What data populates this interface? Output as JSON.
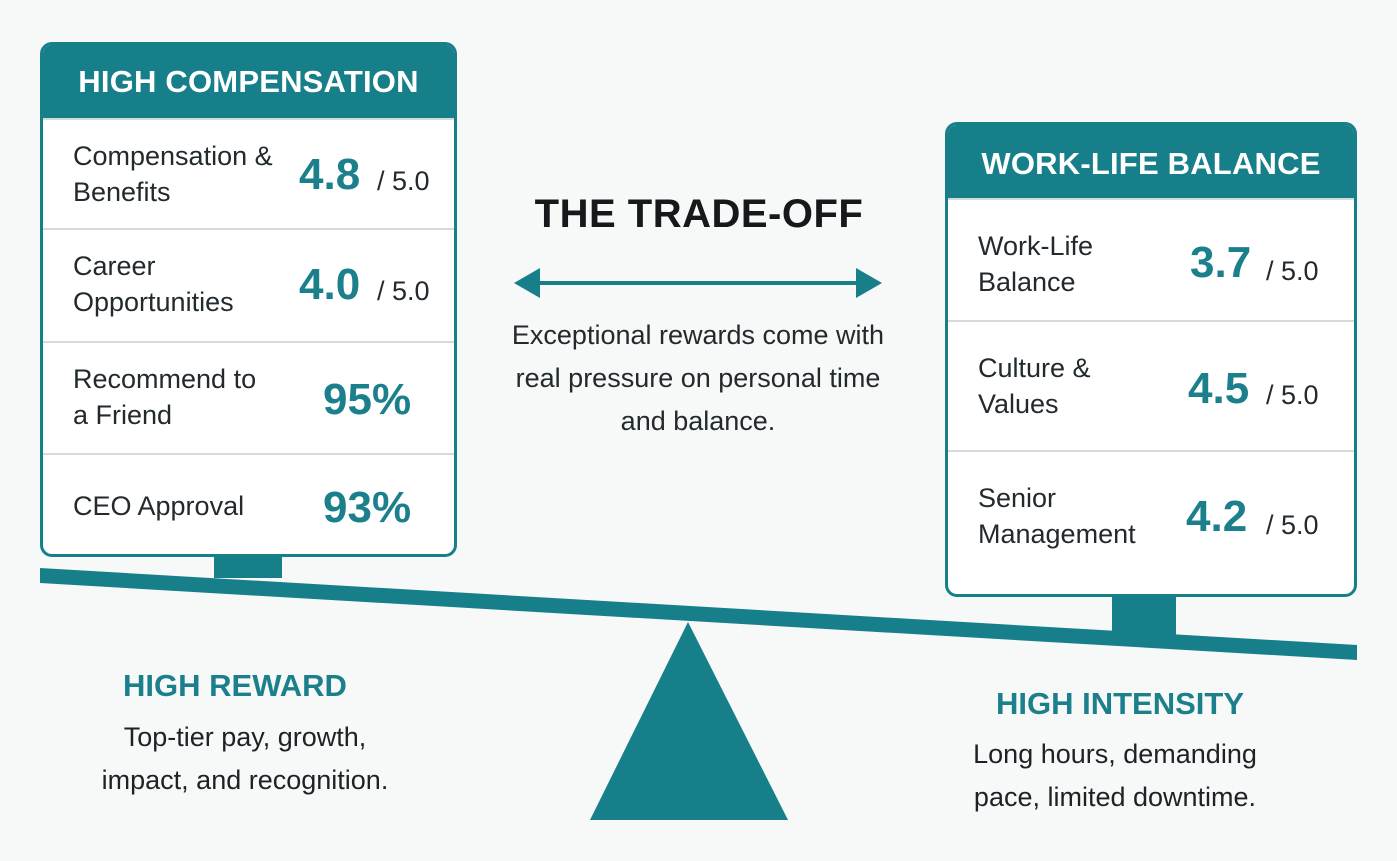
{
  "center": {
    "title": "THE TRADE-OFF",
    "description": "Exceptional rewards come with real pressure on personal time and balance."
  },
  "left_card": {
    "header": "HIGH COMPENSATION",
    "rows": [
      {
        "label": "Compensation & Benefits",
        "value": "4.8",
        "suffix": "/ 5.0"
      },
      {
        "label": "Career Opportunities",
        "value": "4.0",
        "suffix": "/ 5.0"
      },
      {
        "label": "Recommend to a Friend",
        "value": "95%",
        "suffix": ""
      },
      {
        "label": "CEO Approval",
        "value": "93%",
        "suffix": ""
      }
    ]
  },
  "right_card": {
    "header": "WORK-LIFE BALANCE",
    "rows": [
      {
        "label": "Work-Life Balance",
        "value": "3.7",
        "suffix": "/ 5.0"
      },
      {
        "label": "Culture & Values",
        "value": "4.5",
        "suffix": "/ 5.0"
      },
      {
        "label": "Senior Management",
        "value": "4.2",
        "suffix": "/ 5.0"
      }
    ]
  },
  "left_caption": {
    "title": "HIGH REWARD",
    "text": "Top-tier pay, growth, impact, and recognition."
  },
  "right_caption": {
    "title": "HIGH INTENSITY",
    "text": "Long hours, demanding pace, limited downtime."
  },
  "colors": {
    "accent": "#167f8a",
    "value_text": "#1c7f8c",
    "background": "#f7f8f8"
  },
  "icons": {
    "arrow": "double-headed-arrow-icon",
    "fulcrum": "triangle-fulcrum-icon"
  }
}
